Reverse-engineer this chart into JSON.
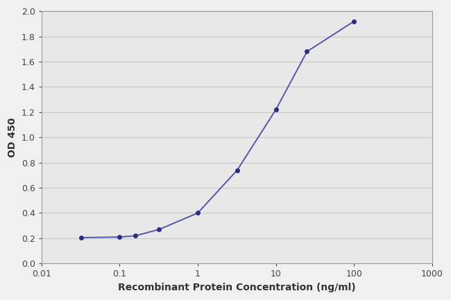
{
  "x_values": [
    0.032,
    0.1,
    0.16,
    0.32,
    1.0,
    3.2,
    10.0,
    25.0,
    100.0
  ],
  "y_values": [
    0.205,
    0.21,
    0.22,
    0.27,
    0.4,
    0.74,
    1.22,
    1.68,
    1.92
  ],
  "xlim": [
    0.01,
    1000
  ],
  "ylim": [
    0,
    2.0
  ],
  "yticks": [
    0,
    0.2,
    0.4,
    0.6,
    0.8,
    1.0,
    1.2,
    1.4,
    1.6,
    1.8,
    2.0
  ],
  "xticks": [
    0.01,
    0.1,
    1,
    10,
    100,
    1000
  ],
  "xtick_labels": [
    "0.01",
    "0.1",
    "1",
    "10",
    "100",
    "1000"
  ],
  "xlabel": "Recombinant Protein Concentration (ng/ml)",
  "ylabel": "OD 450",
  "line_color": "#5555aa",
  "marker_color": "#2b2f7e",
  "marker_size": 4,
  "line_width": 1.4,
  "fig_bg_color": "#f0f0f0",
  "plot_bg_color": "#e8e8e8",
  "grid_color": "#c8c8c8",
  "spine_color": "#999999",
  "label_fontsize": 10,
  "tick_fontsize": 9
}
